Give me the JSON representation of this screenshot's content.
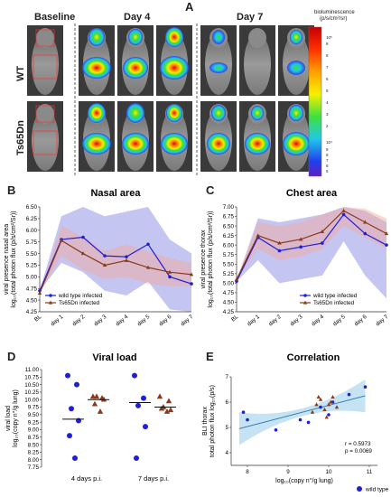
{
  "figure": {
    "panels": {
      "A": {
        "letter": "A",
        "headers": [
          "Baseline",
          "Day 4",
          "Day 7"
        ],
        "rows": [
          "WT",
          "Ts65Dn"
        ],
        "colorbar": {
          "title_line1": "bioluminescence",
          "title_line2": "(p/s/cm²/sr)",
          "top_exp": "10⁵",
          "ticks_top": [
            "9",
            "8",
            "7",
            "6",
            "5",
            "4",
            "3",
            "2"
          ],
          "mid_exp": "10⁴",
          "ticks_bottom": [
            "9",
            "8",
            "7",
            "6",
            "5"
          ]
        }
      },
      "B": {
        "letter": "B",
        "title": "Nasal area"
      },
      "C": {
        "letter": "C",
        "title": "Chest area"
      },
      "D": {
        "letter": "D",
        "title": "Viral load"
      },
      "E": {
        "letter": "E",
        "title": "Correlation"
      }
    },
    "colors": {
      "wild_type": "#1f1fd6",
      "ts65dn": "#8b3a1a",
      "wt_band": "#7f7fe0",
      "ts_band": "#f3a89c",
      "reg_band": "#9fd0ea",
      "reg_line": "#3a7fb0"
    }
  },
  "chart_data": [
    {
      "id": "B",
      "type": "line",
      "title": "Nasal area",
      "ylabel_line1": "viral presence nasal area",
      "ylabel_line2": "log₁₀(total photon flux (p/s/cm²/Sr))",
      "categories": [
        "BL",
        "day 1",
        "day 2",
        "day 3",
        "day 4",
        "day 5",
        "day 6",
        "day 7"
      ],
      "ylim": [
        4.25,
        6.5
      ],
      "yticks": [
        "4.25",
        "4.50",
        "4.75",
        "5.00",
        "5.25",
        "5.50",
        "5.75",
        "6.00",
        "6.25",
        "6.50"
      ],
      "series": [
        {
          "name": "wild type infected",
          "values": [
            4.7,
            5.8,
            5.85,
            5.45,
            5.43,
            5.7,
            5.0,
            4.85
          ],
          "lower": [
            4.7,
            5.3,
            5.1,
            4.7,
            4.6,
            4.9,
            4.3,
            4.25
          ],
          "upper": [
            4.7,
            6.3,
            6.5,
            6.3,
            6.4,
            6.5,
            5.8,
            5.5
          ]
        },
        {
          "name": "Ts65Dn infected",
          "values": [
            4.65,
            5.78,
            5.5,
            5.25,
            5.35,
            5.2,
            5.1,
            5.05
          ],
          "lower": [
            4.65,
            5.45,
            5.15,
            4.95,
            5.0,
            4.85,
            4.8,
            4.8
          ],
          "upper": [
            4.65,
            6.1,
            5.85,
            5.55,
            5.7,
            5.55,
            5.4,
            5.3
          ]
        }
      ],
      "legend": "lower-left"
    },
    {
      "id": "C",
      "type": "line",
      "title": "Chest area",
      "ylabel_line1": "viral presence thorax",
      "ylabel_line2": "log₁₀(total photon flux (p/s/cm²/Sr))",
      "categories": [
        "BL",
        "day 1",
        "day 2",
        "day 3",
        "day 4",
        "day 5",
        "day 6",
        "day 7"
      ],
      "ylim": [
        4.25,
        7.0
      ],
      "yticks": [
        "4.25",
        "4.50",
        "4.75",
        "5.00",
        "5.25",
        "5.50",
        "5.75",
        "6.00",
        "6.25",
        "6.50",
        "6.75",
        "7.00"
      ],
      "series": [
        {
          "name": "wild type infected",
          "values": [
            5.05,
            6.2,
            5.85,
            5.95,
            6.05,
            6.8,
            6.3,
            6.0
          ],
          "lower": [
            5.05,
            5.6,
            5.0,
            5.1,
            5.2,
            6.1,
            5.2,
            4.6
          ],
          "upper": [
            5.05,
            6.7,
            6.6,
            6.7,
            6.8,
            7.0,
            6.9,
            6.6
          ]
        },
        {
          "name": "Ts65Dn infected",
          "values": [
            5.1,
            6.25,
            6.05,
            6.15,
            6.35,
            6.9,
            6.6,
            6.3
          ],
          "lower": [
            5.1,
            5.9,
            5.6,
            5.7,
            5.9,
            6.5,
            6.2,
            5.9
          ],
          "upper": [
            5.1,
            6.6,
            6.5,
            6.6,
            6.8,
            7.0,
            6.95,
            6.7
          ]
        }
      ],
      "legend": "lower-right"
    },
    {
      "id": "D",
      "type": "scatter",
      "title": "Viral load",
      "ylabel_line1": "viral load",
      "ylabel_line2": "log₁₀(copy n°/g lung)",
      "categories": [
        "4 days p.i.",
        "7 days p.i."
      ],
      "ylim": [
        7.75,
        11.0
      ],
      "yticks": [
        "7.75",
        "8.00",
        "8.25",
        "8.50",
        "8.75",
        "9.00",
        "9.25",
        "9.50",
        "9.75",
        "10.00",
        "10.25",
        "10.50",
        "10.75",
        "11.00"
      ],
      "series": [
        {
          "name": "wild type",
          "values": [
            [
              10.8,
              10.5,
              9.7,
              9.3,
              8.8,
              8.05
            ],
            [
              10.8,
              10.05,
              9.8,
              9.1,
              8.05
            ]
          ],
          "medians": [
            9.35,
            9.9
          ]
        },
        {
          "name": "Ts65Dn",
          "values": [
            [
              10.1,
              10.05,
              10.1,
              10.0,
              9.85,
              9.6
            ],
            [
              10.1,
              9.95,
              9.75,
              9.65,
              9.7,
              9.6
            ]
          ],
          "medians": [
            10.0,
            9.75
          ]
        }
      ]
    },
    {
      "id": "E",
      "type": "scatter",
      "title": "Correlation",
      "ylabel_line1": "BLI thorax",
      "ylabel_line2": "total photon flux log₁₀(p/s)",
      "xlabel": "log₁₀(copy n°/g lung)",
      "xlim": [
        7.6,
        11.2
      ],
      "ylim": [
        3.5,
        7.0
      ],
      "xticks": [
        "8",
        "9",
        "10",
        "11"
      ],
      "yticks": [
        "4",
        "5",
        "6",
        "7"
      ],
      "annotation_r": "r = 0.5973",
      "annotation_p": "p = 0.0069",
      "legend": [
        {
          "name": "wild type",
          "marker": "circle"
        },
        {
          "name": "Ts65Dn",
          "marker": "triangle"
        }
      ],
      "series": [
        {
          "name": "wild type",
          "points": [
            [
              7.9,
              5.6
            ],
            [
              8.0,
              5.3
            ],
            [
              8.7,
              4.9
            ],
            [
              9.3,
              5.3
            ],
            [
              9.5,
              5.2
            ],
            [
              9.8,
              5.8
            ],
            [
              10.0,
              5.5
            ],
            [
              10.5,
              6.3
            ],
            [
              10.9,
              6.6
            ],
            [
              10.1,
              6.0
            ]
          ]
        },
        {
          "name": "Ts65Dn",
          "points": [
            [
              9.6,
              5.6
            ],
            [
              9.7,
              5.9
            ],
            [
              9.75,
              6.2
            ],
            [
              9.8,
              6.1
            ],
            [
              9.9,
              5.7
            ],
            [
              10.0,
              5.9
            ],
            [
              10.05,
              6.0
            ],
            [
              10.1,
              6.2
            ],
            [
              10.2,
              5.8
            ],
            [
              9.95,
              5.4
            ]
          ]
        }
      ],
      "fit": {
        "x": [
          7.8,
          10.9
        ],
        "y": [
          4.95,
          6.25
        ]
      }
    }
  ]
}
